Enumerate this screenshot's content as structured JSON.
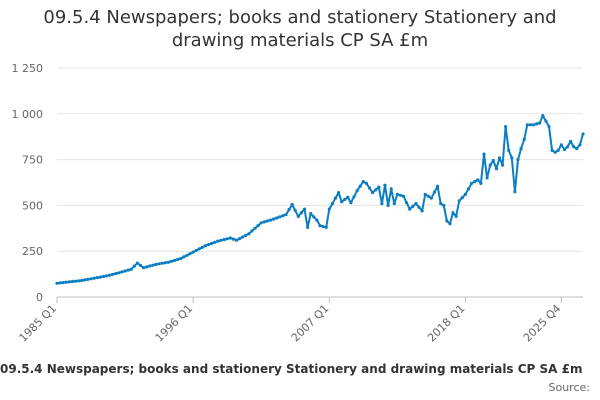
{
  "chart_data": {
    "type": "line",
    "title_line1": "09.5.4 Newspapers; books and stationery Stationery and",
    "title_line2": "drawing materials CP SA £m",
    "legend_label": "09.5.4 Newspapers; books and stationery Stationery and drawing materials CP SA £m",
    "source_label": "Source:",
    "color": "#0b7ec1",
    "ylim": [
      0,
      1250
    ],
    "y_ticks": [
      0,
      250,
      500,
      750,
      1000,
      1250
    ],
    "y_tick_labels": [
      "0",
      "250",
      "500",
      "750",
      "1 000",
      "1 250"
    ],
    "x_tick_labels": [
      "1985 Q1",
      "1996 Q1",
      "2007 Q1",
      "2018 Q1",
      "2025 Q4"
    ],
    "x_tick_indices": [
      0,
      44,
      88,
      132,
      163
    ],
    "anchors": [
      [
        0,
        75
      ],
      [
        8,
        90
      ],
      [
        16,
        115
      ],
      [
        20,
        132
      ],
      [
        24,
        152
      ],
      [
        26,
        185
      ],
      [
        28,
        160
      ],
      [
        32,
        178
      ],
      [
        36,
        190
      ],
      [
        40,
        210
      ],
      [
        44,
        245
      ],
      [
        48,
        280
      ],
      [
        52,
        305
      ],
      [
        56,
        322
      ],
      [
        58,
        310
      ],
      [
        62,
        345
      ],
      [
        66,
        405
      ],
      [
        70,
        425
      ],
      [
        74,
        450
      ],
      [
        76,
        505
      ],
      [
        78,
        440
      ],
      [
        80,
        480
      ],
      [
        81,
        380
      ],
      [
        82,
        455
      ],
      [
        84,
        420
      ],
      [
        85,
        390
      ],
      [
        87,
        380
      ],
      [
        88,
        480
      ],
      [
        89,
        510
      ],
      [
        91,
        570
      ],
      [
        92,
        520
      ],
      [
        94,
        545
      ],
      [
        95,
        515
      ],
      [
        97,
        580
      ],
      [
        99,
        630
      ],
      [
        100,
        620
      ],
      [
        102,
        570
      ],
      [
        104,
        600
      ],
      [
        105,
        510
      ],
      [
        106,
        610
      ],
      [
        107,
        500
      ],
      [
        108,
        590
      ],
      [
        109,
        510
      ],
      [
        110,
        560
      ],
      [
        112,
        550
      ],
      [
        114,
        480
      ],
      [
        116,
        510
      ],
      [
        118,
        470
      ],
      [
        119,
        560
      ],
      [
        121,
        540
      ],
      [
        123,
        605
      ],
      [
        124,
        510
      ],
      [
        125,
        500
      ],
      [
        126,
        415
      ],
      [
        127,
        400
      ],
      [
        128,
        460
      ],
      [
        129,
        440
      ],
      [
        130,
        525
      ],
      [
        132,
        560
      ],
      [
        134,
        620
      ],
      [
        136,
        640
      ],
      [
        137,
        620
      ],
      [
        138,
        780
      ],
      [
        139,
        650
      ],
      [
        140,
        720
      ],
      [
        141,
        745
      ],
      [
        142,
        700
      ],
      [
        143,
        760
      ],
      [
        144,
        720
      ],
      [
        145,
        930
      ],
      [
        146,
        800
      ],
      [
        147,
        760
      ],
      [
        148,
        575
      ],
      [
        149,
        750
      ],
      [
        150,
        810
      ],
      [
        151,
        860
      ],
      [
        152,
        940
      ],
      [
        154,
        940
      ],
      [
        156,
        950
      ],
      [
        157,
        990
      ],
      [
        158,
        960
      ],
      [
        159,
        930
      ],
      [
        160,
        800
      ],
      [
        161,
        790
      ],
      [
        162,
        800
      ],
      [
        163,
        830
      ],
      [
        164,
        805
      ],
      [
        165,
        820
      ],
      [
        166,
        850
      ],
      [
        167,
        820
      ],
      [
        168,
        810
      ],
      [
        169,
        830
      ],
      [
        170,
        890
      ]
    ]
  }
}
